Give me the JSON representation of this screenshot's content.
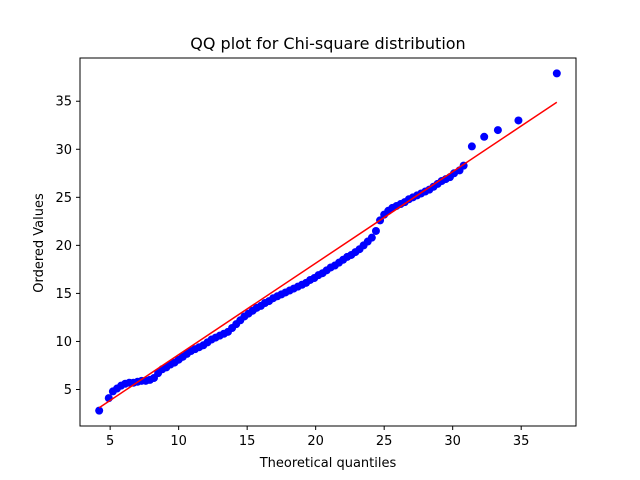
{
  "chart_data": {
    "type": "scatter",
    "title": "QQ plot for Chi-square distribution",
    "xlabel": "Theoretical quantiles",
    "ylabel": "Ordered Values",
    "xlim": [
      2.8,
      39.0
    ],
    "ylim": [
      1.2,
      39.5
    ],
    "xticks": [
      5,
      10,
      15,
      20,
      25,
      30,
      35
    ],
    "yticks": [
      5,
      10,
      15,
      20,
      25,
      30,
      35
    ],
    "grid": false,
    "colors": {
      "points": "#0000ff",
      "fit_line": "#ff0000"
    },
    "fit_line": {
      "x": [
        4.2,
        37.6
      ],
      "y": [
        3.1,
        34.9
      ]
    },
    "series": [
      {
        "x": [
          4.2,
          4.9,
          5.2,
          5.5,
          5.8,
          6.1,
          6.4,
          6.7,
          7.0,
          7.3,
          7.6,
          7.9,
          8.2,
          8.5,
          8.8,
          9.1,
          9.4,
          9.7,
          10.0,
          10.3,
          10.6,
          10.9,
          11.2,
          11.5,
          11.8,
          12.1,
          12.4,
          12.7,
          13.0,
          13.3,
          13.6,
          13.9,
          14.2,
          14.5,
          14.8,
          15.1,
          15.4,
          15.7,
          16.0,
          16.3,
          16.6,
          16.9,
          17.2,
          17.5,
          17.8,
          18.1,
          18.4,
          18.7,
          19.0,
          19.3,
          19.6,
          19.9,
          20.2,
          20.5,
          20.8,
          21.1,
          21.4,
          21.7,
          22.0,
          22.3,
          22.6,
          22.9,
          23.2,
          23.5,
          23.8,
          24.1,
          24.4,
          24.7,
          25.0,
          25.3,
          25.6,
          25.9,
          26.2,
          26.5,
          26.8,
          27.1,
          27.4,
          27.7,
          28.0,
          28.3,
          28.6,
          28.9,
          29.2,
          29.5,
          29.8,
          30.1,
          30.5,
          30.8,
          31.4,
          32.3,
          33.3,
          34.8,
          37.6
        ],
        "y": [
          2.8,
          4.1,
          4.8,
          5.1,
          5.4,
          5.6,
          5.7,
          5.7,
          5.8,
          5.9,
          5.9,
          6.0,
          6.2,
          6.7,
          7.1,
          7.3,
          7.6,
          7.8,
          8.1,
          8.4,
          8.7,
          9.0,
          9.2,
          9.4,
          9.6,
          9.9,
          10.2,
          10.4,
          10.6,
          10.8,
          11.0,
          11.4,
          11.8,
          12.2,
          12.6,
          12.9,
          13.2,
          13.5,
          13.7,
          14.0,
          14.2,
          14.5,
          14.7,
          14.9,
          15.1,
          15.3,
          15.5,
          15.7,
          15.9,
          16.1,
          16.4,
          16.6,
          16.9,
          17.1,
          17.4,
          17.7,
          17.9,
          18.2,
          18.5,
          18.8,
          19.0,
          19.3,
          19.6,
          20.0,
          20.4,
          20.8,
          21.5,
          22.6,
          23.2,
          23.6,
          23.9,
          24.1,
          24.3,
          24.5,
          24.8,
          25.0,
          25.2,
          25.4,
          25.6,
          25.8,
          26.1,
          26.4,
          26.7,
          26.9,
          27.1,
          27.5,
          27.8,
          28.3,
          30.3,
          31.3,
          32.0,
          33.0,
          37.9
        ]
      }
    ]
  }
}
